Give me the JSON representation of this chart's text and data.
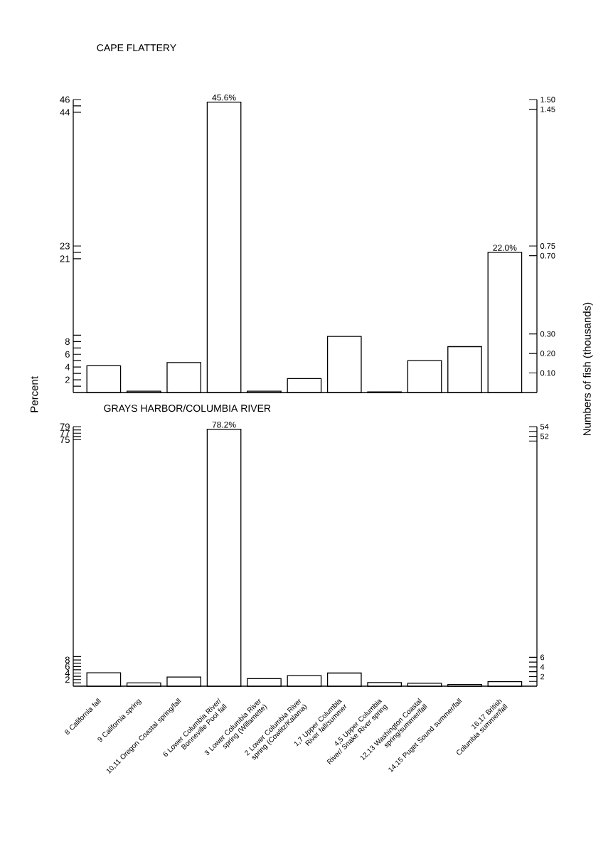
{
  "chart_data": [
    {
      "type": "bar",
      "title": "CAPE FLATTERY",
      "ylabel": "Percent",
      "y2label": "Numbers of fish (thousands)",
      "categories": [
        null,
        null,
        null,
        null,
        null,
        null,
        null,
        null,
        null,
        null,
        null
      ],
      "values": [
        4.2,
        0.2,
        4.7,
        45.6,
        0.2,
        2.2,
        8.8,
        0.1,
        5.0,
        7.2,
        22.0
      ],
      "value_labels": [
        null,
        null,
        null,
        "45.6%",
        null,
        null,
        null,
        null,
        null,
        null,
        "22.0%"
      ],
      "color": "#000000",
      "ylim": [
        0,
        46
      ],
      "yticks": [
        {
          "value": 1,
          "label": null
        },
        2,
        {
          "value": 3,
          "label": null
        },
        4,
        {
          "value": 5,
          "label": null
        },
        6,
        {
          "value": 7,
          "label": null
        },
        8,
        {
          "value": 9,
          "label": null
        },
        21,
        {
          "value": 22,
          "label": null
        },
        23,
        44,
        {
          "value": 45,
          "label": null
        },
        46
      ],
      "y2lim": [
        0,
        1.5
      ],
      "y2ticks": [
        {
          "value": 0.1,
          "label": "0.10"
        },
        {
          "value": 0.2,
          "label": "0.20"
        },
        {
          "value": 0.3,
          "label": "0.30"
        },
        {
          "value": 0.7,
          "label": "0.70"
        },
        {
          "value": 0.75,
          "label": "0.75"
        },
        {
          "value": 1.45,
          "label": "1.45"
        },
        {
          "value": 1.5,
          "label": "1.50"
        }
      ],
      "tick_labels": "y"
    },
    {
      "type": "bar",
      "title": "GRAYS HARBOR/COLUMBIA RIVER",
      "categories": [
        "8 California fall",
        "9 California spring",
        "10,11 Oregon Coastal spring/fall",
        "6 Lower Columbia River/ Bonneville Pool fall",
        "3 Lower Columbia River spring (Willamette)",
        "2 Lower Columbia River spring (Cowlitz/Kalama)",
        "1,7 Upper Columbia River fall/summer",
        "4,5 Upper Columbia River/ Snake River spring",
        "12,13 Washington Coastal spring/summer/fall",
        "14,15 Puget Sound summer/fall",
        "16,17 British Columbia summer/fall"
      ],
      "values": [
        4.1,
        1.0,
        2.8,
        78.2,
        2.3,
        3.2,
        4.0,
        1.1,
        0.9,
        0.5,
        1.4
      ],
      "value_labels": [
        null,
        null,
        null,
        "78.2%",
        null,
        null,
        null,
        null,
        null,
        null,
        null
      ],
      "color": "#000000",
      "ylim": [
        0,
        79
      ],
      "yticks": [
        {
          "value": 1,
          "label": null
        },
        2,
        {
          "value": 3,
          "label": null
        },
        4,
        {
          "value": 5,
          "label": null
        },
        6,
        {
          "value": 7,
          "label": null
        },
        8,
        {
          "value": 9,
          "label": null
        },
        75,
        {
          "value": 76,
          "label": null
        },
        77,
        {
          "value": 78,
          "label": null
        },
        79
      ],
      "y2lim": [
        0,
        54
      ],
      "y2ticks": [
        {
          "value": 1,
          "label": null
        },
        2,
        {
          "value": 3,
          "label": null
        },
        4,
        {
          "value": 5,
          "label": null
        },
        6,
        {
          "value": 51,
          "label": null
        },
        52,
        {
          "value": 53,
          "label": null
        },
        54
      ]
    }
  ]
}
